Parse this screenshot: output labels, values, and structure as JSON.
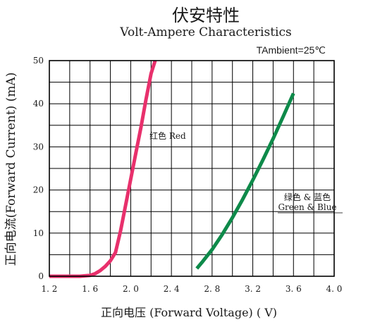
{
  "chart_data": {
    "type": "line",
    "title": "伏安特性",
    "subtitle": "Volt-Ampere  Characteristics",
    "ambient": "TAmbient=25℃",
    "xlabel": "正向电压 (Forward  Voltage) ( V)",
    "ylabel": "正向电流(Forward  Current) (mA)",
    "xlim": [
      1.2,
      4.0
    ],
    "ylim": [
      0,
      50
    ],
    "x_ticks": [
      "1. 2",
      "1. 6",
      "2. 0",
      "2. 4",
      "2. 8",
      "3. 2",
      "3. 6",
      "4. 0"
    ],
    "y_ticks": [
      "0",
      "10",
      "20",
      "30",
      "40",
      "50"
    ],
    "grid": true,
    "series": [
      {
        "name": "红色  Red",
        "color": "#e8306c",
        "x": [
          1.2,
          1.4,
          1.5,
          1.6,
          1.65,
          1.7,
          1.75,
          1.8,
          1.85,
          1.9,
          1.95,
          2.0,
          2.05,
          2.1,
          2.15,
          2.2,
          2.24
        ],
        "y": [
          0,
          0,
          0,
          0.2,
          0.6,
          1.3,
          2.3,
          3.6,
          5.5,
          10.5,
          16.5,
          22.5,
          28.5,
          34.5,
          41,
          47,
          50
        ]
      },
      {
        "name": "绿色 & 蓝色 Green & Blue",
        "color": "#0e8a4a",
        "x": [
          2.65,
          2.7,
          2.8,
          2.9,
          3.0,
          3.1,
          3.2,
          3.3,
          3.4,
          3.5,
          3.6
        ],
        "y": [
          1.8,
          3.2,
          6.2,
          9.7,
          13.6,
          17.8,
          22.3,
          27.0,
          31.9,
          37.1,
          42.4
        ]
      }
    ],
    "annotations": {
      "red_label": "红色  Red",
      "gb_label_cn": "绿色 & 蓝色",
      "gb_label_en": "Green & Blue"
    }
  }
}
